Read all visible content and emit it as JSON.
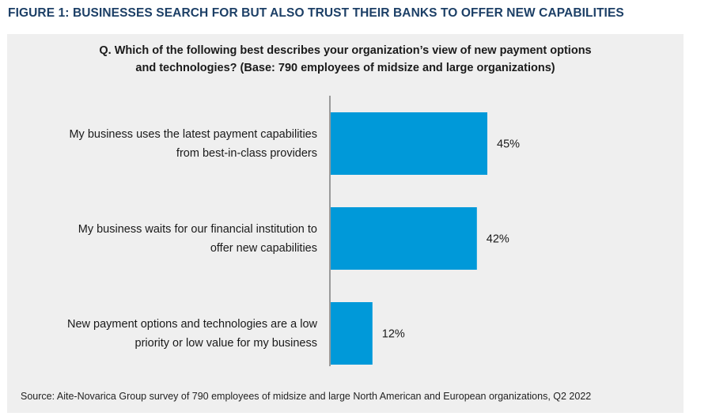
{
  "figure_title": "FIGURE 1: BUSINESSES SEARCH FOR BUT ALSO TRUST THEIR BANKS TO OFFER NEW CAPABILITIES",
  "question": {
    "line1": "Q. Which of the following best describes your organization’s view of new payment options",
    "line2": "and technologies? (Base: 790 employees of midsize and large organizations)"
  },
  "source": "Source: Aite-Novarica Group survey of 790 employees of midsize and large North American and European organizations, Q2 2022",
  "colors": {
    "title": "#1c3f66",
    "bar": "#0099d9",
    "panel": "#efefef",
    "axis": "#7f7f7f"
  },
  "chart_data": {
    "type": "bar",
    "orientation": "horizontal",
    "categories": [
      [
        "My business uses the latest payment capabilities",
        "from best-in-class providers"
      ],
      [
        "My business waits for our financial institution to",
        "offer new capabilities"
      ],
      [
        "New payment options and technologies are a low",
        "priority or low value for my business"
      ]
    ],
    "values": [
      45,
      42,
      12
    ],
    "data_labels": [
      "45%",
      "42%",
      "12%"
    ],
    "xlim": [
      0,
      100
    ],
    "grid": false,
    "legend": "none"
  }
}
